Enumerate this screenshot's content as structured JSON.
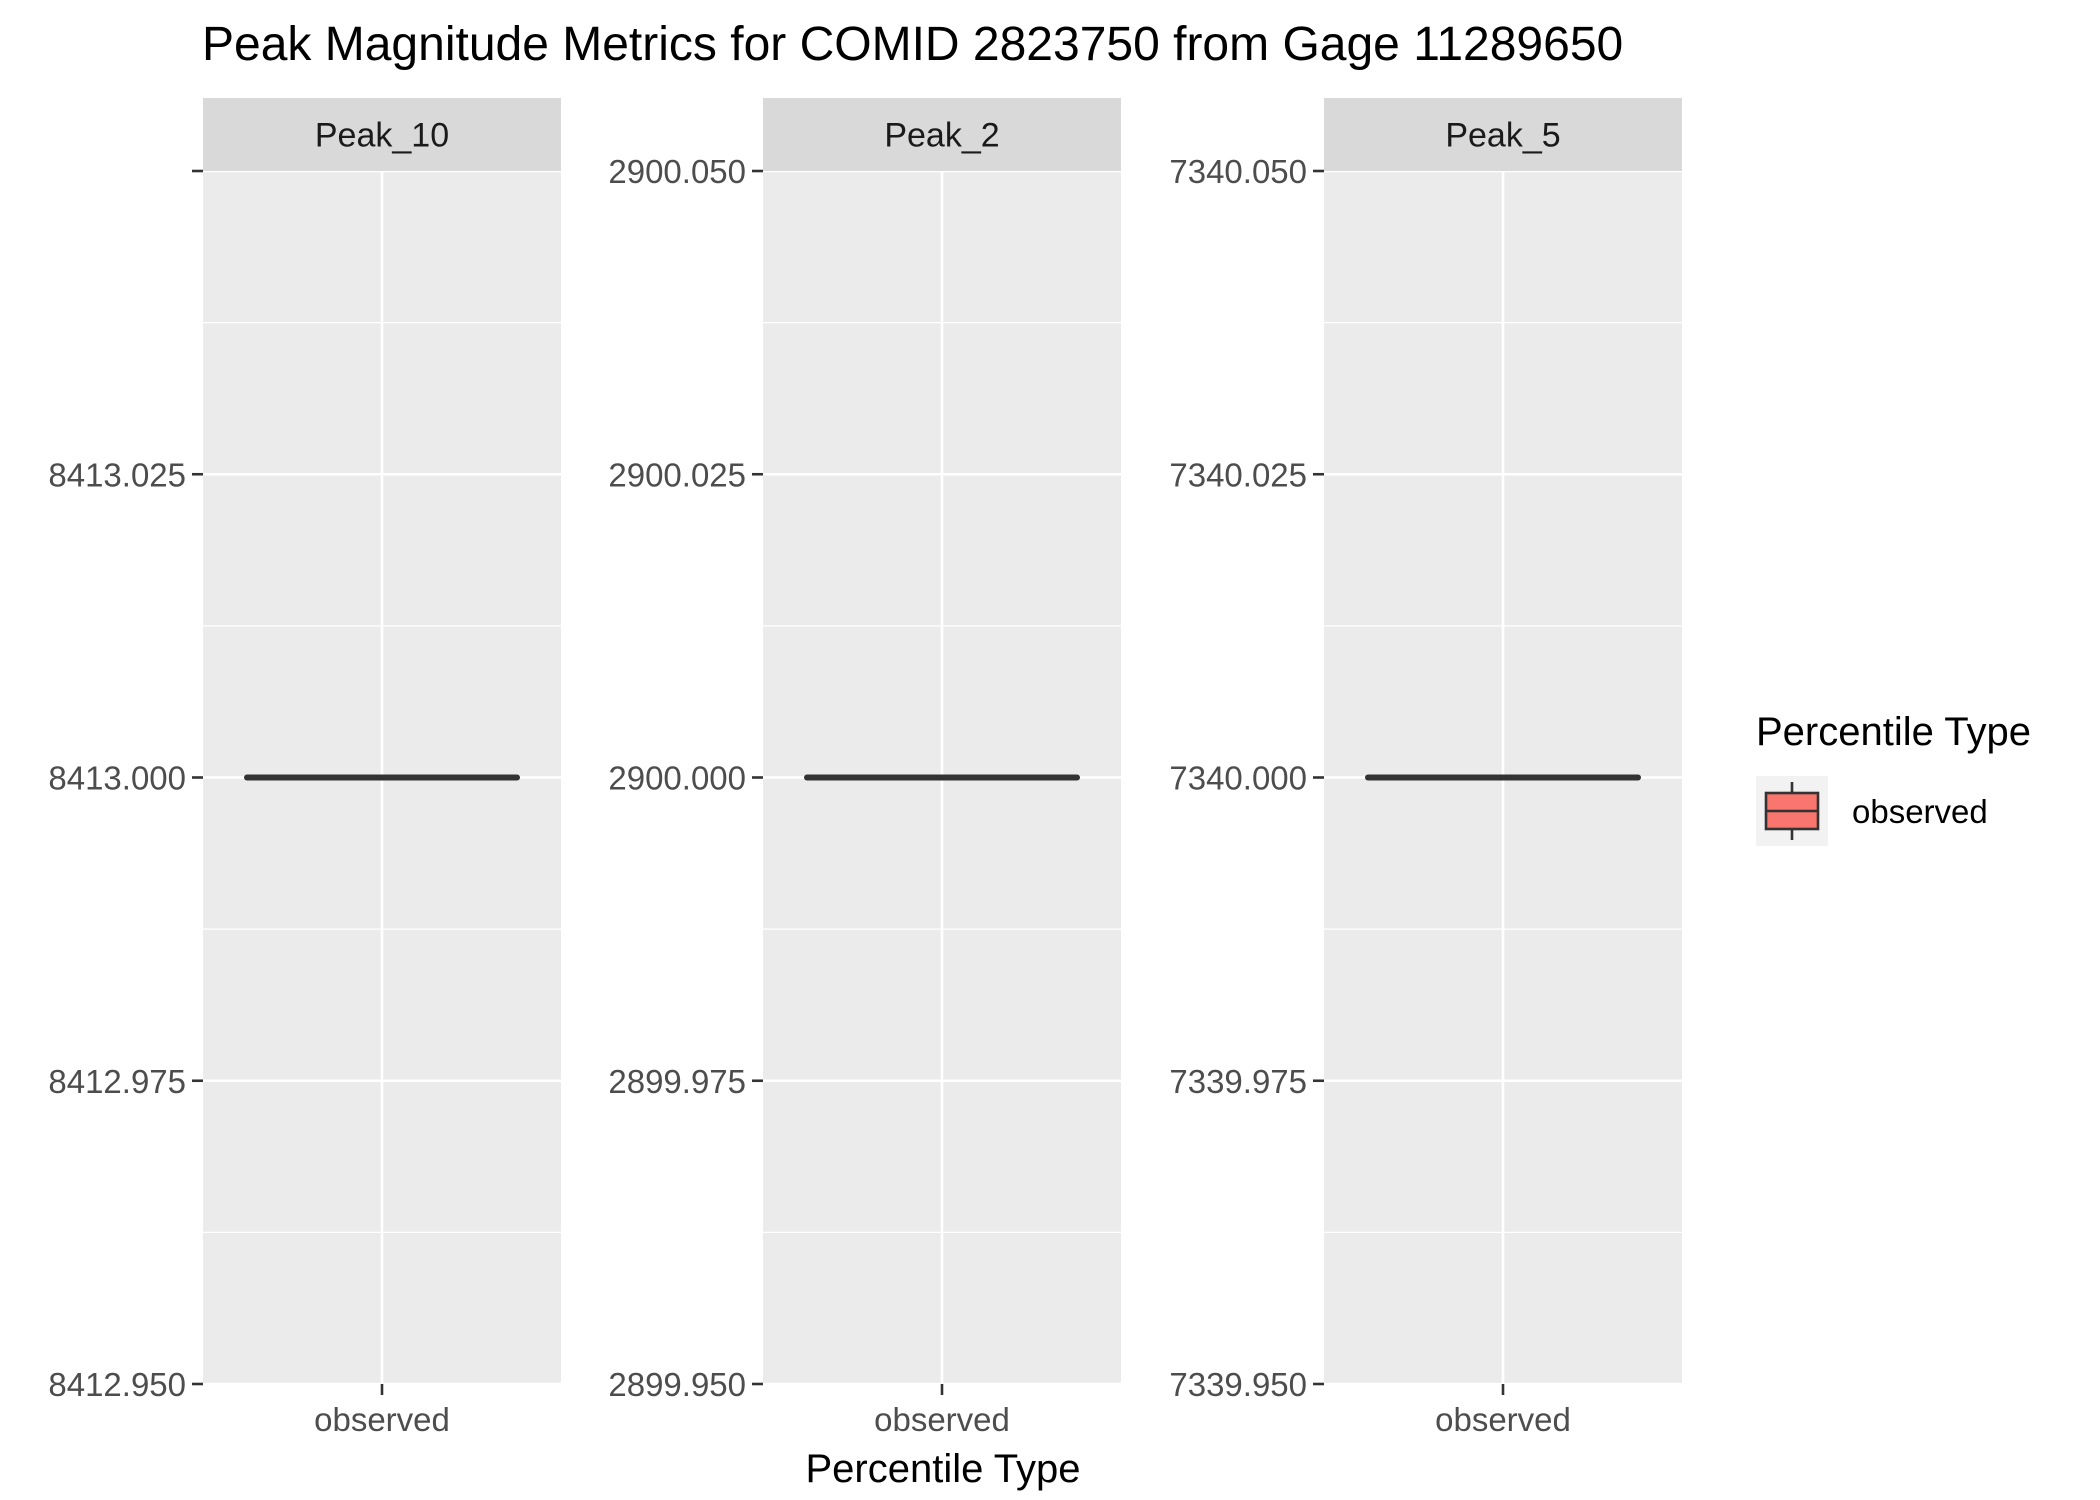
{
  "chart_data": {
    "type": "boxplot",
    "title": "Peak Magnitude Metrics for COMID 2823750 from Gage 11289650",
    "xlabel": "Percentile Type",
    "ylabel": "",
    "categories": [
      "observed"
    ],
    "legend": {
      "title": "Percentile Type",
      "entries": [
        {
          "label": "observed",
          "color": "#F8766D"
        }
      ],
      "placement": "right"
    },
    "grid": true,
    "facets": [
      {
        "name": "Peak_10",
        "ylim": [
          8412.95,
          8413.05
        ],
        "yticks": [
          8412.95,
          8412.975,
          8413,
          8413.025,
          8413.05
        ],
        "ytick_labels": [
          "8412.950",
          "8412.975",
          "8413.000",
          "8413.025",
          ""
        ],
        "series": [
          {
            "name": "observed",
            "min": 8413,
            "q1": 8413,
            "median": 8413,
            "q3": 8413,
            "max": 8413
          }
        ]
      },
      {
        "name": "Peak_2",
        "ylim": [
          2899.95,
          2900.05
        ],
        "yticks": [
          2899.95,
          2899.975,
          2900,
          2900.025,
          2900.05
        ],
        "ytick_labels": [
          "2899.950",
          "2899.975",
          "2900.000",
          "2900.025",
          "2900.050"
        ],
        "series": [
          {
            "name": "observed",
            "min": 2900,
            "q1": 2900,
            "median": 2900,
            "q3": 2900,
            "max": 2900
          }
        ]
      },
      {
        "name": "Peak_5",
        "ylim": [
          7339.95,
          7340.05
        ],
        "yticks": [
          7339.95,
          7339.975,
          7340,
          7340.025,
          7340.05
        ],
        "ytick_labels": [
          "7339.950",
          "7339.975",
          "7340.000",
          "7340.025",
          "7340.050"
        ],
        "series": [
          {
            "name": "observed",
            "min": 7340,
            "q1": 7340,
            "median": 7340,
            "q3": 7340,
            "max": 7340
          }
        ]
      }
    ],
    "colors": {
      "panel_bg": "#EBEBEB",
      "strip_bg": "#D9D9D9",
      "grid": "#FFFFFF",
      "box_fill": "#F8766D",
      "box_line": "#333333",
      "axis_text": "#4D4D4D",
      "tick": "#333333"
    }
  }
}
